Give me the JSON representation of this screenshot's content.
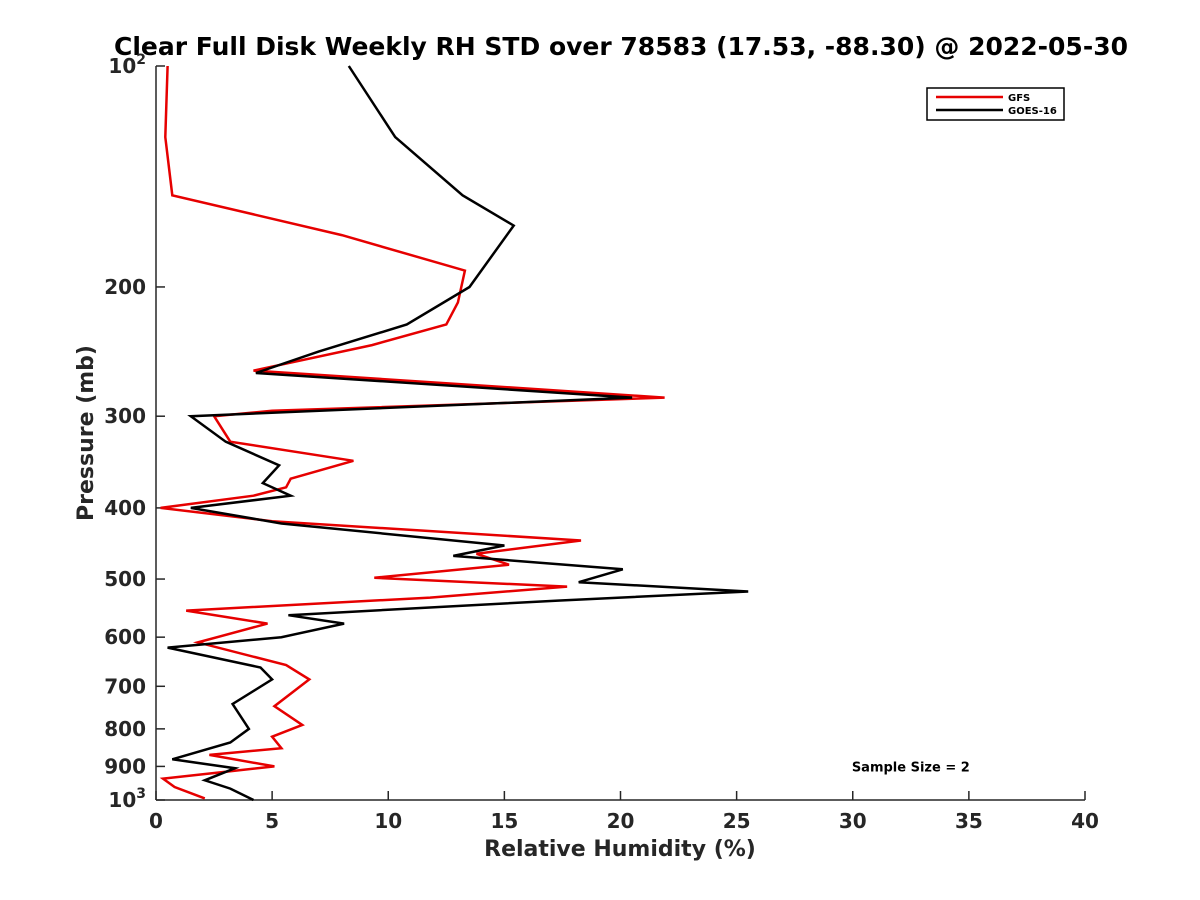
{
  "chart_data": {
    "type": "line",
    "title": "Clear Full Disk Weekly RH STD over 78583 (17.53, -88.30) @ 2022-05-30",
    "xlabel": "Relative Humidity (%)",
    "ylabel": "Pressure (mb)",
    "xlim": [
      0,
      40
    ],
    "ylim": [
      100,
      1000
    ],
    "y_scale": "log",
    "y_reversed": true,
    "x_ticks": [
      "0",
      "5",
      "10",
      "15",
      "20",
      "25",
      "30",
      "35",
      "40"
    ],
    "y_ticks": [
      {
        "value": 100,
        "base": "10",
        "exp": "2"
      },
      {
        "value": 200,
        "label": "200"
      },
      {
        "value": 300,
        "label": "300"
      },
      {
        "value": 400,
        "label": "400"
      },
      {
        "value": 500,
        "label": "500"
      },
      {
        "value": 600,
        "label": "600"
      },
      {
        "value": 700,
        "label": "700"
      },
      {
        "value": 800,
        "label": "800"
      },
      {
        "value": 900,
        "label": "900"
      },
      {
        "value": 1000,
        "base": "10",
        "exp": "3"
      }
    ],
    "legend_position": "top-right",
    "grid": false,
    "series": [
      {
        "name": "GFS",
        "color": "#e60000",
        "points": [
          [
            0.5,
            100
          ],
          [
            0.4,
            125
          ],
          [
            0.7,
            150
          ],
          [
            8.0,
            170
          ],
          [
            13.3,
            190
          ],
          [
            13.0,
            210
          ],
          [
            12.5,
            225
          ],
          [
            9.3,
            240
          ],
          [
            4.2,
            260
          ],
          [
            21.9,
            283
          ],
          [
            5.0,
            295
          ],
          [
            2.5,
            300
          ],
          [
            3.2,
            325
          ],
          [
            8.5,
            345
          ],
          [
            5.8,
            365
          ],
          [
            5.6,
            375
          ],
          [
            4.2,
            385
          ],
          [
            0.2,
            400
          ],
          [
            5.0,
            417
          ],
          [
            18.3,
            443
          ],
          [
            13.8,
            462
          ],
          [
            15.2,
            478
          ],
          [
            9.4,
            498
          ],
          [
            17.7,
            512
          ],
          [
            11.8,
            530
          ],
          [
            1.3,
            552
          ],
          [
            4.8,
            575
          ],
          [
            1.8,
            610
          ],
          [
            5.6,
            655
          ],
          [
            6.6,
            685
          ],
          [
            5.1,
            745
          ],
          [
            6.3,
            790
          ],
          [
            5.0,
            820
          ],
          [
            5.4,
            850
          ],
          [
            2.3,
            868
          ],
          [
            5.1,
            900
          ],
          [
            3.0,
            915
          ],
          [
            0.3,
            935
          ],
          [
            0.8,
            960
          ],
          [
            2.1,
            995
          ]
        ]
      },
      {
        "name": "GOES-16",
        "color": "#000000",
        "points": [
          [
            8.3,
            100
          ],
          [
            10.3,
            125
          ],
          [
            13.2,
            150
          ],
          [
            15.4,
            165
          ],
          [
            13.5,
            200
          ],
          [
            10.8,
            225
          ],
          [
            7.0,
            245
          ],
          [
            4.3,
            262
          ],
          [
            20.5,
            283
          ],
          [
            1.5,
            300
          ],
          [
            3.0,
            325
          ],
          [
            5.3,
            350
          ],
          [
            4.6,
            370
          ],
          [
            5.8,
            385
          ],
          [
            1.5,
            400
          ],
          [
            5.4,
            420
          ],
          [
            15.0,
            450
          ],
          [
            12.8,
            465
          ],
          [
            20.1,
            485
          ],
          [
            18.2,
            505
          ],
          [
            25.5,
            520
          ],
          [
            17.3,
            535
          ],
          [
            5.7,
            560
          ],
          [
            8.1,
            575
          ],
          [
            5.4,
            600
          ],
          [
            0.5,
            620
          ],
          [
            4.5,
            660
          ],
          [
            5.0,
            685
          ],
          [
            3.3,
            740
          ],
          [
            4.0,
            800
          ],
          [
            3.2,
            835
          ],
          [
            0.7,
            880
          ],
          [
            3.4,
            905
          ],
          [
            2.1,
            940
          ],
          [
            3.2,
            965
          ],
          [
            4.2,
            1000
          ]
        ]
      }
    ],
    "annotations": [
      {
        "text": "Sample Size = 2",
        "x": 32.5,
        "y": 900
      }
    ]
  }
}
